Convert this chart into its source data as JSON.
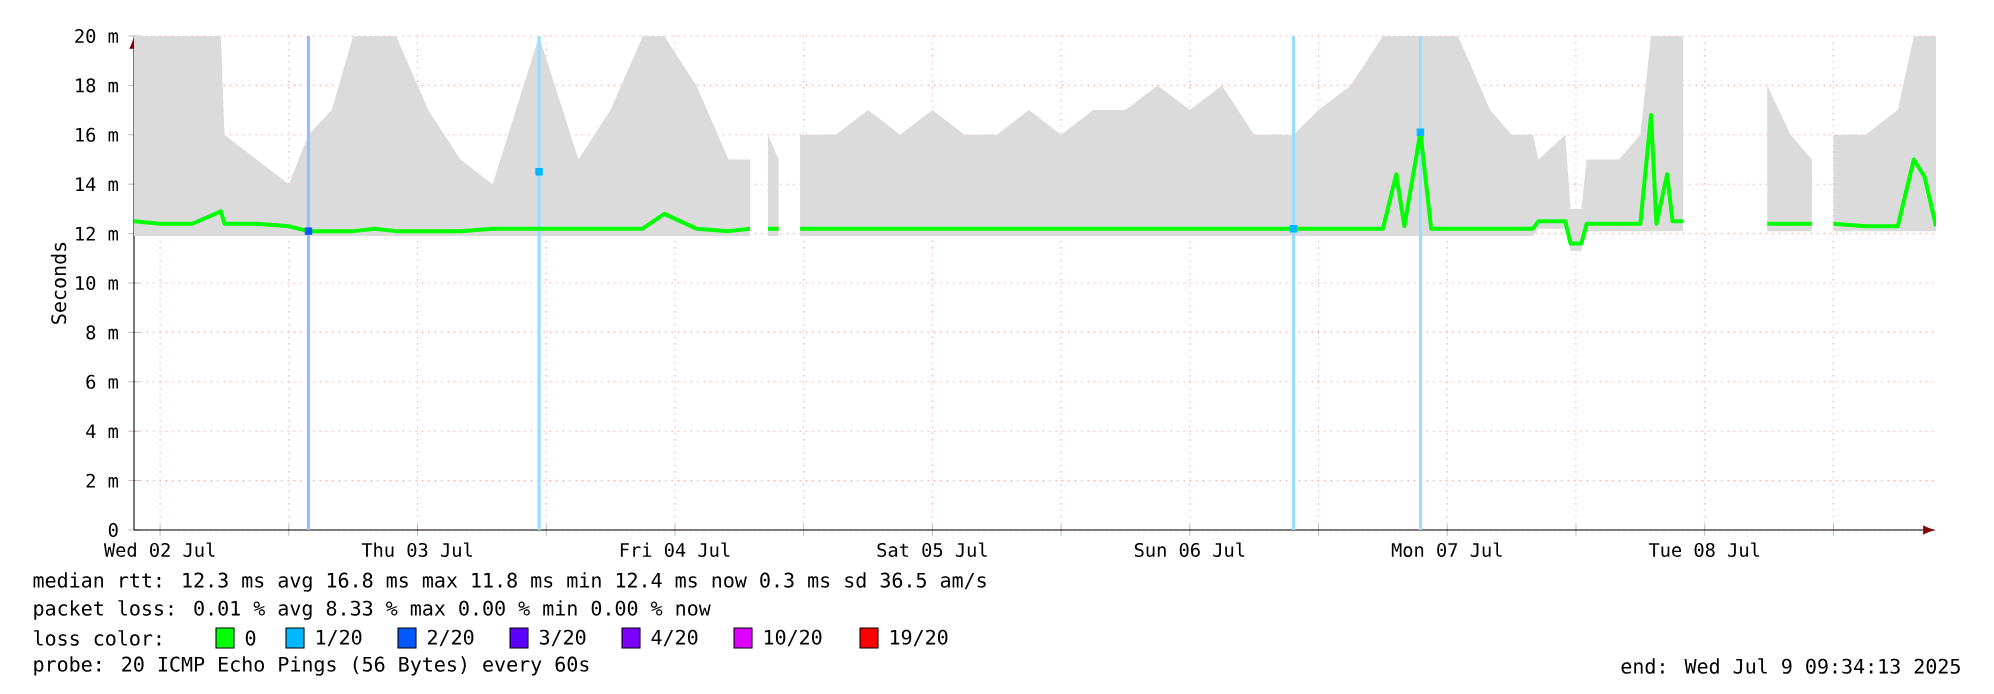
{
  "chart_data": {
    "type": "line",
    "ylabel": "Seconds",
    "legend_title": "loss color:",
    "legend": "bottom",
    "grid": true,
    "xlim": [
      "2025-07-02T09:34",
      "2025-07-09T09:34"
    ],
    "xticks": [
      {
        "value": "2025-07-02T12:00",
        "label": "Wed 02 Jul"
      },
      {
        "value": "2025-07-03T00:00",
        "label": null
      },
      {
        "value": "2025-07-03T12:00",
        "label": "Thu 03 Jul"
      },
      {
        "value": "2025-07-04T00:00",
        "label": null
      },
      {
        "value": "2025-07-04T12:00",
        "label": "Fri 04 Jul"
      },
      {
        "value": "2025-07-05T00:00",
        "label": null
      },
      {
        "value": "2025-07-05T12:00",
        "label": "Sat 05 Jul"
      },
      {
        "value": "2025-07-06T00:00",
        "label": null
      },
      {
        "value": "2025-07-06T12:00",
        "label": "Sun 06 Jul"
      },
      {
        "value": "2025-07-07T00:00",
        "label": null
      },
      {
        "value": "2025-07-07T12:00",
        "label": "Mon 07 Jul"
      },
      {
        "value": "2025-07-08T00:00",
        "label": null
      },
      {
        "value": "2025-07-08T12:00",
        "label": "Tue 08 Jul"
      },
      {
        "value": "2025-07-09T00:00",
        "label": null
      }
    ],
    "ylim": [
      0,
      20
    ],
    "yticks": [
      0,
      {
        "value": 2,
        "label": "2 m"
      },
      {
        "value": 4,
        "label": "4 m"
      },
      {
        "value": 6,
        "label": "6 m"
      },
      {
        "value": 8,
        "label": "8 m"
      },
      {
        "value": 10,
        "label": "10 m"
      },
      {
        "value": 12,
        "label": "12 m"
      },
      {
        "value": 14,
        "label": "14 m"
      },
      {
        "value": 16,
        "label": "16 m"
      },
      {
        "value": 18,
        "label": "18 m"
      },
      {
        "value": 20,
        "label": "20 m"
      }
    ],
    "x": [
      "2025-07-02T09:34",
      "2025-07-02T12:00",
      "2025-07-02T15:00",
      "2025-07-02T17:40",
      "2025-07-02T18:00",
      "2025-07-02T21:00",
      "2025-07-03T00:00",
      "2025-07-03T01:50",
      "2025-07-03T04:00",
      "2025-07-03T06:00",
      "2025-07-03T08:00",
      "2025-07-03T10:00",
      "2025-07-03T13:00",
      "2025-07-03T16:00",
      "2025-07-03T19:00",
      "2025-07-03T23:20",
      "2025-07-04T03:00",
      "2025-07-04T06:00",
      "2025-07-04T09:00",
      "2025-07-04T11:00",
      "2025-07-04T14:00",
      "2025-07-04T17:00",
      "2025-07-04T19:00",
      "2025-07-04T19:40",
      "2025-07-04T20:40",
      "2025-07-04T21:40",
      "2025-07-04T22:30",
      "2025-07-04T23:40",
      "2025-07-05T03:00",
      "2025-07-05T06:00",
      "2025-07-05T09:00",
      "2025-07-05T12:00",
      "2025-07-05T15:00",
      "2025-07-05T18:00",
      "2025-07-05T21:00",
      "2025-07-06T00:00",
      "2025-07-06T03:00",
      "2025-07-06T06:00",
      "2025-07-06T09:00",
      "2025-07-06T12:00",
      "2025-07-06T15:00",
      "2025-07-06T18:00",
      "2025-07-06T21:40",
      "2025-07-07T00:00",
      "2025-07-07T03:00",
      "2025-07-07T06:00",
      "2025-07-07T07:15",
      "2025-07-07T08:00",
      "2025-07-07T09:30",
      "2025-07-07T10:30",
      "2025-07-07T13:00",
      "2025-07-07T16:00",
      "2025-07-07T18:00",
      "2025-07-07T20:00",
      "2025-07-07T20:30",
      "2025-07-07T23:00",
      "2025-07-07T23:30",
      "2025-07-08T00:30",
      "2025-07-08T01:00",
      "2025-07-08T04:00",
      "2025-07-08T06:00",
      "2025-07-08T07:00",
      "2025-07-08T07:30",
      "2025-07-08T08:30",
      "2025-07-08T09:00",
      "2025-07-08T10:00",
      "2025-07-08T10:20",
      "2025-07-08T17:50",
      "2025-07-08T20:00",
      "2025-07-08T22:00",
      "2025-07-08T22:30",
      "2025-07-09T00:00",
      "2025-07-09T03:00",
      "2025-07-09T06:00",
      "2025-07-09T07:30",
      "2025-07-09T08:30",
      "2025-07-09T09:34"
    ],
    "series": [
      {
        "name": "0",
        "color": "#00ff00",
        "values": [
          12.5,
          12.4,
          12.4,
          12.9,
          12.4,
          12.4,
          12.3,
          12.1,
          12.1,
          12.1,
          12.2,
          12.1,
          12.1,
          12.1,
          12.2,
          12.2,
          12.2,
          12.2,
          12.2,
          12.8,
          12.2,
          12.1,
          12.2,
          null,
          12.2,
          12.2,
          null,
          12.2,
          12.2,
          12.2,
          12.2,
          12.2,
          12.2,
          12.2,
          12.2,
          12.2,
          12.2,
          12.2,
          12.2,
          12.2,
          12.2,
          12.2,
          12.2,
          12.2,
          12.2,
          12.2,
          14.4,
          12.3,
          16.1,
          12.2,
          12.2,
          12.2,
          12.2,
          12.2,
          12.5,
          12.5,
          11.6,
          11.6,
          12.4,
          12.4,
          12.4,
          16.8,
          12.4,
          14.4,
          12.5,
          12.5,
          null,
          12.4,
          12.4,
          12.4,
          null,
          12.4,
          12.3,
          12.3,
          15.0,
          14.3,
          12.3
        ],
        "lower": [
          11.9,
          11.9,
          11.9,
          11.9,
          11.9,
          11.9,
          11.9,
          11.9,
          11.9,
          11.9,
          11.9,
          11.9,
          11.9,
          11.9,
          11.9,
          11.9,
          11.9,
          11.9,
          11.9,
          11.9,
          11.9,
          11.9,
          11.9,
          null,
          11.9,
          11.9,
          null,
          11.9,
          11.9,
          11.9,
          11.9,
          11.9,
          11.9,
          11.9,
          11.9,
          11.9,
          11.9,
          11.9,
          11.9,
          11.9,
          11.9,
          11.9,
          11.9,
          11.9,
          11.9,
          11.9,
          11.9,
          11.9,
          11.9,
          11.9,
          11.9,
          11.9,
          11.9,
          11.9,
          12.2,
          12.2,
          11.3,
          11.3,
          12.1,
          12.1,
          12.1,
          12.1,
          12.1,
          12.1,
          12.1,
          12.1,
          null,
          12.1,
          12.1,
          12.1,
          null,
          12.1,
          12.1,
          12.1,
          12.1,
          12.1,
          12.1
        ],
        "upper": [
          20,
          20,
          20,
          20,
          16,
          15,
          14,
          16,
          17,
          20,
          20,
          20,
          17,
          15,
          14,
          20,
          15,
          17,
          20,
          20,
          18,
          15,
          15,
          null,
          16,
          15,
          null,
          16,
          16,
          17,
          16,
          17,
          16,
          16,
          17,
          16,
          17,
          17,
          18,
          17,
          18,
          16,
          16,
          17,
          18,
          20,
          20,
          20,
          20,
          20,
          20,
          17,
          16,
          16,
          15,
          16,
          13,
          13,
          15,
          15,
          16,
          20,
          20,
          20,
          20,
          20,
          null,
          18,
          16,
          15,
          null,
          16,
          16,
          17,
          20,
          20,
          20
        ]
      },
      {
        "name": "1/20",
        "type": "scatter",
        "color": "#00b8ff",
        "x": [
          "2025-07-03T23:20",
          "2025-07-06T21:40",
          "2025-07-07T09:30"
        ],
        "values": [
          14.5,
          12.2,
          16.1
        ]
      },
      {
        "name": "2/20",
        "type": "scatter",
        "color": "#0059ff",
        "x": [
          "2025-07-03T01:50"
        ],
        "values": [
          12.1
        ]
      },
      {
        "name": "3/20",
        "type": "scatter",
        "color": "#5e00ff",
        "values": [
          null,
          null,
          null,
          null,
          null,
          null,
          null,
          null,
          null,
          null,
          null,
          null,
          null,
          null,
          null,
          null,
          null,
          null,
          null,
          null,
          null,
          null,
          null,
          null,
          null,
          null,
          null,
          null,
          null,
          null,
          null,
          null,
          null,
          null,
          null,
          null,
          null,
          null,
          null,
          null,
          null,
          null,
          null,
          null,
          null,
          null,
          null,
          null,
          null,
          null,
          null,
          null,
          null,
          null,
          null,
          null,
          null,
          null,
          null,
          null,
          null,
          null,
          null,
          null,
          null,
          null,
          null,
          null,
          null,
          null,
          null,
          null,
          null,
          null,
          null,
          null,
          null
        ]
      },
      {
        "name": "4/20",
        "type": "scatter",
        "color": "#7e00ff",
        "values": [
          null,
          null,
          null,
          null,
          null,
          null,
          null,
          null,
          null,
          null,
          null,
          null,
          null,
          null,
          null,
          null,
          null,
          null,
          null,
          null,
          null,
          null,
          null,
          null,
          null,
          null,
          null,
          null,
          null,
          null,
          null,
          null,
          null,
          null,
          null,
          null,
          null,
          null,
          null,
          null,
          null,
          null,
          null,
          null,
          null,
          null,
          null,
          null,
          null,
          null,
          null,
          null,
          null,
          null,
          null,
          null,
          null,
          null,
          null,
          null,
          null,
          null,
          null,
          null,
          null,
          null,
          null,
          null,
          null,
          null,
          null,
          null,
          null,
          null,
          null,
          null,
          null
        ]
      },
      {
        "name": "10/20",
        "type": "scatter",
        "color": "#dd00ff",
        "values": [
          null,
          null,
          null,
          null,
          null,
          null,
          null,
          null,
          null,
          null,
          null,
          null,
          null,
          null,
          null,
          null,
          null,
          null,
          null,
          null,
          null,
          null,
          null,
          null,
          null,
          null,
          null,
          null,
          null,
          null,
          null,
          null,
          null,
          null,
          null,
          null,
          null,
          null,
          null,
          null,
          null,
          null,
          null,
          null,
          null,
          null,
          null,
          null,
          null,
          null,
          null,
          null,
          null,
          null,
          null,
          null,
          null,
          null,
          null,
          null,
          null,
          null,
          null,
          null,
          null,
          null,
          null,
          null,
          null,
          null,
          null,
          null,
          null,
          null,
          null,
          null,
          null
        ]
      },
      {
        "name": "19/20",
        "type": "scatter",
        "color": "#ff0000",
        "values": [
          null,
          null,
          null,
          null,
          null,
          null,
          null,
          null,
          null,
          null,
          null,
          null,
          null,
          null,
          null,
          null,
          null,
          null,
          null,
          null,
          null,
          null,
          null,
          null,
          null,
          null,
          null,
          null,
          null,
          null,
          null,
          null,
          null,
          null,
          null,
          null,
          null,
          null,
          null,
          null,
          null,
          null,
          null,
          null,
          null,
          null,
          null,
          null,
          null,
          null,
          null,
          null,
          null,
          null,
          null,
          null,
          null,
          null,
          null,
          null,
          null,
          null,
          null,
          null,
          null,
          null,
          null,
          null,
          null,
          null,
          null,
          null,
          null,
          null,
          null,
          null,
          null
        ]
      }
    ],
    "ref_lines": [
      {
        "axis": "x",
        "value": "2025-07-03T01:50",
        "color": "#99bbff"
      },
      {
        "axis": "x",
        "value": "2025-07-03T23:20",
        "color": "#99ddff"
      },
      {
        "axis": "x",
        "value": "2025-07-06T21:40",
        "color": "#99ddff"
      },
      {
        "axis": "x",
        "value": "2025-07-07T09:30",
        "color": "#99ddff"
      }
    ],
    "annotations": [
      "median rtt: 12.3 ms avg 16.8 ms max 11.8 ms min 12.4 ms now 0.3 ms sd 36.5 am/s",
      "packet loss: 0.01 % avg 8.33 % max 0.00 % min 0.00 % now",
      "probe: 20 ICMP Echo Pings (56 Bytes) every 60s",
      "end: Wed Jul 9 09:34:13 2025"
    ]
  }
}
